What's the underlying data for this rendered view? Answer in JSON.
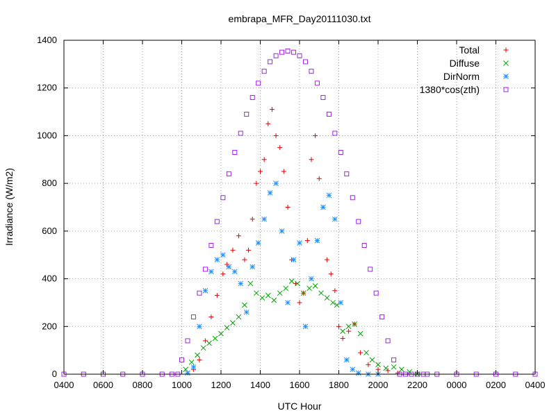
{
  "chart_data": {
    "type": "scatter",
    "title": "embrapa_MFR_Day20111030.txt",
    "xlabel": "UTC Hour",
    "ylabel": "Irradiance (W/m2)",
    "xlim": [
      4,
      28
    ],
    "ylim": [
      0,
      1400
    ],
    "grid": true,
    "legend_position": "top-right",
    "x_ticks": [
      {
        "value": 4,
        "label": "0400"
      },
      {
        "value": 6,
        "label": "0600"
      },
      {
        "value": 8,
        "label": "0800"
      },
      {
        "value": 10,
        "label": "1000"
      },
      {
        "value": 12,
        "label": "1200"
      },
      {
        "value": 14,
        "label": "1400"
      },
      {
        "value": 16,
        "label": "1600"
      },
      {
        "value": 18,
        "label": "1800"
      },
      {
        "value": 20,
        "label": "2000"
      },
      {
        "value": 22,
        "label": "2200"
      },
      {
        "value": 24,
        "label": "0000"
      },
      {
        "value": 26,
        "label": "0200"
      },
      {
        "value": 28,
        "label": "0400"
      }
    ],
    "y_ticks": [
      {
        "value": 0,
        "label": "0"
      },
      {
        "value": 200,
        "label": "200"
      },
      {
        "value": 400,
        "label": "400"
      },
      {
        "value": 600,
        "label": "600"
      },
      {
        "value": 800,
        "label": "800"
      },
      {
        "value": 1000,
        "label": "1000"
      },
      {
        "value": 1200,
        "label": "1200"
      },
      {
        "value": 1400,
        "label": "1400"
      }
    ],
    "series": [
      {
        "name": "Total",
        "color": "#e00000",
        "marker": "plus",
        "x": [
          10.6,
          10.9,
          11.2,
          11.5,
          11.8,
          12.1,
          12.3,
          12.6,
          12.9,
          13.2,
          13.4,
          13.6,
          13.8,
          14.0,
          14.2,
          14.4,
          14.6,
          14.8,
          15.0,
          15.2,
          15.4,
          15.6,
          15.8,
          16.0,
          16.2,
          16.4,
          16.6,
          16.8,
          17.0,
          17.2,
          17.4,
          17.6,
          17.8,
          18.0,
          18.2,
          18.5,
          18.8,
          19.1,
          19.5,
          20.0,
          20.5,
          21.0,
          21.5
        ],
        "y": [
          20,
          60,
          140,
          240,
          330,
          420,
          460,
          520,
          580,
          480,
          520,
          650,
          800,
          850,
          900,
          1050,
          1110,
          1000,
          950,
          850,
          700,
          480,
          380,
          300,
          340,
          560,
          900,
          1000,
          820,
          700,
          480,
          420,
          350,
          200,
          150,
          180,
          210,
          90,
          40,
          20,
          15,
          5,
          0
        ]
      },
      {
        "name": "Diffuse",
        "color": "#00a000",
        "marker": "x",
        "x": [
          10.2,
          10.5,
          10.8,
          11.1,
          11.4,
          11.7,
          12.0,
          12.3,
          12.6,
          12.9,
          13.2,
          13.5,
          13.8,
          14.1,
          14.4,
          14.7,
          15.0,
          15.3,
          15.6,
          15.9,
          16.2,
          16.5,
          16.8,
          17.1,
          17.4,
          17.7,
          17.9,
          18.2,
          18.5,
          18.8,
          19.1,
          19.4,
          19.7,
          20.0,
          20.4,
          20.8,
          21.2,
          21.6,
          22.0
        ],
        "y": [
          20,
          50,
          80,
          110,
          130,
          150,
          170,
          195,
          215,
          240,
          290,
          380,
          340,
          320,
          330,
          310,
          340,
          360,
          390,
          380,
          340,
          360,
          370,
          340,
          320,
          300,
          290,
          180,
          200,
          210,
          170,
          90,
          60,
          40,
          25,
          30,
          20,
          10,
          0
        ]
      },
      {
        "name": "DirNorm",
        "color": "#1e90ff",
        "marker": "star",
        "x": [
          10.3,
          10.6,
          10.9,
          11.2,
          11.5,
          11.8,
          12.1,
          12.4,
          12.7,
          13.0,
          13.3,
          13.6,
          13.9,
          14.2,
          14.5,
          14.8,
          15.1,
          15.4,
          15.7,
          16.0,
          16.3,
          16.6,
          16.9,
          17.2,
          17.5,
          17.8,
          18.1,
          18.4,
          18.7,
          19.0,
          19.5,
          20.0
        ],
        "y": [
          5,
          30,
          200,
          350,
          430,
          480,
          500,
          450,
          430,
          380,
          260,
          450,
          550,
          650,
          760,
          800,
          600,
          300,
          480,
          550,
          200,
          400,
          560,
          700,
          750,
          650,
          300,
          60,
          20,
          5,
          0,
          0
        ]
      },
      {
        "name": "1380*cos(zth)",
        "color": "#a020f0",
        "marker": "square",
        "x": [
          4,
          5,
          6,
          7,
          8,
          9,
          9.5,
          9.8,
          10.0,
          10.3,
          10.6,
          10.9,
          11.2,
          11.5,
          11.8,
          12.1,
          12.4,
          12.7,
          13.0,
          13.3,
          13.6,
          13.9,
          14.2,
          14.5,
          14.8,
          15.1,
          15.4,
          15.7,
          16.0,
          16.3,
          16.6,
          16.9,
          17.2,
          17.5,
          17.8,
          18.1,
          18.4,
          18.7,
          19.0,
          19.3,
          19.6,
          19.9,
          20.2,
          20.5,
          20.8,
          21.1,
          21.4,
          21.7,
          22.0,
          22.3,
          22.5,
          23,
          24,
          25,
          26,
          27,
          28
        ],
        "y": [
          0,
          0,
          0,
          0,
          0,
          0,
          0,
          0,
          60,
          140,
          240,
          340,
          440,
          540,
          640,
          740,
          840,
          930,
          1010,
          1090,
          1160,
          1220,
          1270,
          1310,
          1335,
          1350,
          1355,
          1350,
          1335,
          1310,
          1270,
          1220,
          1160,
          1090,
          1010,
          930,
          840,
          740,
          640,
          540,
          440,
          340,
          240,
          140,
          60,
          0,
          0,
          0,
          0,
          0,
          0,
          0,
          0,
          0,
          0,
          0,
          0
        ]
      }
    ]
  }
}
